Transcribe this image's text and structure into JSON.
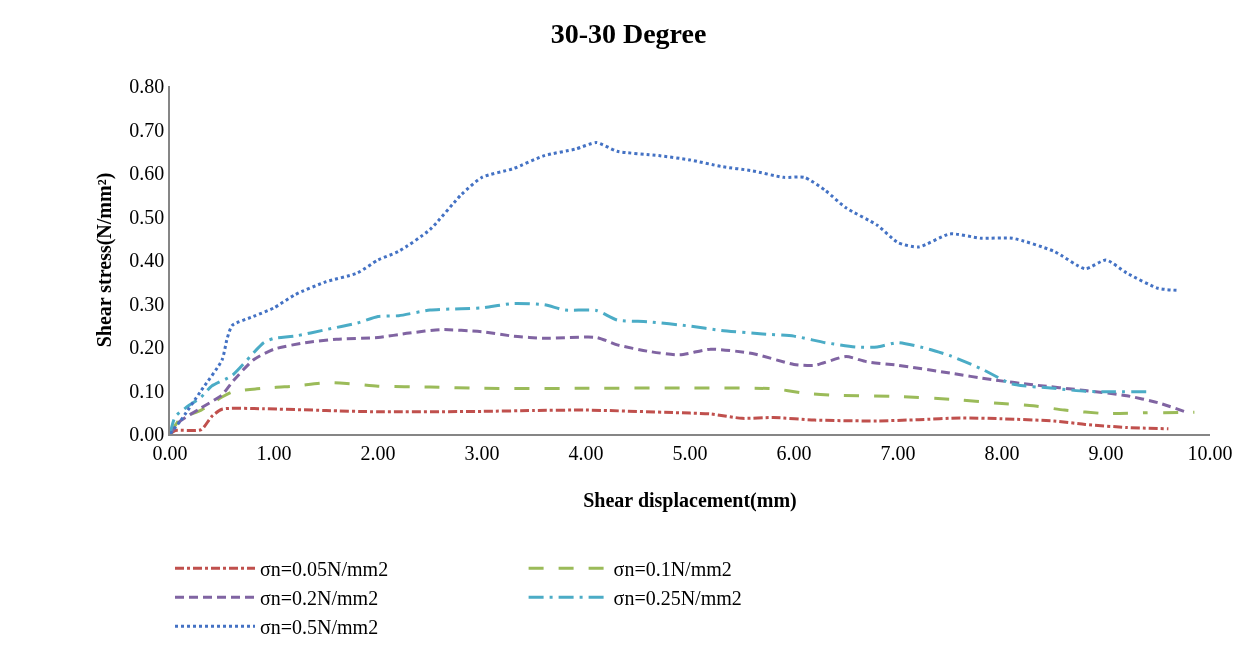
{
  "chart_data": {
    "type": "line",
    "title": "30-30 Degree",
    "xlabel": "Shear displacement(mm)",
    "ylabel": "Shear stress(N/mm²)",
    "xlim": [
      0,
      10
    ],
    "xticks": [
      {
        "value": 0,
        "label": "0.00"
      },
      {
        "value": 1,
        "label": "1.00"
      },
      {
        "value": 2,
        "label": "2.00"
      },
      {
        "value": 3,
        "label": "3.00"
      },
      {
        "value": 4,
        "label": "4.00"
      },
      {
        "value": 5,
        "label": "5.00"
      },
      {
        "value": 6,
        "label": "6.00"
      },
      {
        "value": 7,
        "label": "7.00"
      },
      {
        "value": 8,
        "label": "8.00"
      },
      {
        "value": 9,
        "label": "9.00"
      },
      {
        "value": 10,
        "label": "10.00"
      }
    ],
    "ylim": [
      0,
      0.8
    ],
    "yticks": [
      {
        "value": 0,
        "label": "0.00"
      },
      {
        "value": 0.1,
        "label": "0.10"
      },
      {
        "value": 0.2,
        "label": "0.20"
      },
      {
        "value": 0.3,
        "label": "0.30"
      },
      {
        "value": 0.4,
        "label": "0.40"
      },
      {
        "value": 0.5,
        "label": "0.50"
      },
      {
        "value": 0.6,
        "label": "0.60"
      },
      {
        "value": 0.7,
        "label": "0.70"
      },
      {
        "value": 0.8,
        "label": "0.80"
      }
    ],
    "grid": false,
    "legend": "bottom",
    "marker": "none",
    "series": [
      {
        "name": "σn=0.05N/mm2",
        "color": "#c0504d",
        "line_style": "dashdot",
        "x": [
          0,
          0.05,
          0.3,
          0.4,
          0.5,
          0.9,
          1.5,
          2.0,
          3.0,
          3.5,
          4.0,
          5.0,
          5.2,
          5.5,
          5.8,
          6.2,
          6.8,
          7.2,
          7.6,
          8.0,
          8.5,
          8.8,
          9.2,
          9.6
        ],
        "values": [
          0,
          0.008,
          0.01,
          0.04,
          0.057,
          0.058,
          0.054,
          0.051,
          0.052,
          0.054,
          0.055,
          0.048,
          0.046,
          0.036,
          0.038,
          0.032,
          0.03,
          0.033,
          0.037,
          0.035,
          0.03,
          0.022,
          0.015,
          0.012
        ]
      },
      {
        "name": "σn=0.1N/mm2",
        "color": "#9bbb59",
        "line_style": "longdash",
        "x": [
          0,
          0.1,
          0.3,
          0.5,
          0.6,
          1.0,
          1.2,
          1.5,
          1.7,
          2.0,
          2.5,
          3.0,
          4.0,
          5.0,
          5.8,
          6.1,
          6.4,
          7.0,
          7.5,
          8.0,
          8.3,
          8.6,
          9.0,
          9.4,
          9.47,
          9.55,
          9.85
        ],
        "values": [
          0,
          0.035,
          0.055,
          0.085,
          0.097,
          0.107,
          0.11,
          0.118,
          0.116,
          0.11,
          0.108,
          0.105,
          0.105,
          0.106,
          0.104,
          0.094,
          0.089,
          0.086,
          0.08,
          0.07,
          0.065,
          0.055,
          0.047,
          0.049,
          null,
          0.049,
          0.05
        ]
      },
      {
        "name": "σn=0.2N/mm2",
        "color": "#8064a2",
        "line_style": "dashed",
        "x": [
          0,
          0.1,
          0.3,
          0.5,
          0.6,
          0.8,
          1.0,
          1.3,
          1.6,
          2.0,
          2.3,
          2.6,
          3.0,
          3.3,
          3.6,
          4.1,
          4.3,
          4.6,
          4.9,
          5.2,
          5.6,
          6.0,
          6.2,
          6.5,
          6.7,
          7.0,
          7.5,
          7.9,
          8.3,
          8.8,
          9.2,
          9.5,
          9.75
        ],
        "values": [
          0,
          0.03,
          0.06,
          0.09,
          0.12,
          0.17,
          0.195,
          0.21,
          0.218,
          0.222,
          0.232,
          0.24,
          0.235,
          0.225,
          0.22,
          0.222,
          0.205,
          0.19,
          0.182,
          0.195,
          0.185,
          0.16,
          0.158,
          0.178,
          0.166,
          0.158,
          0.14,
          0.125,
          0.113,
          0.1,
          0.088,
          0.072,
          0.052
        ]
      },
      {
        "name": "σn=0.25N/mm2",
        "color": "#4bacc6",
        "line_style": "longdashdot",
        "x": [
          0,
          0.05,
          0.15,
          0.3,
          0.4,
          0.6,
          0.9,
          1.0,
          1.2,
          1.5,
          1.8,
          2.0,
          2.2,
          2.5,
          2.8,
          3.0,
          3.3,
          3.6,
          3.8,
          4.1,
          4.3,
          4.6,
          5.0,
          5.3,
          5.7,
          6.0,
          6.3,
          6.6,
          6.8,
          7.0,
          7.3,
          7.5,
          7.8,
          8.1,
          8.5,
          8.8,
          9.0,
          9.4
        ],
        "values": [
          0,
          0.04,
          0.06,
          0.085,
          0.11,
          0.135,
          0.21,
          0.22,
          0.225,
          0.24,
          0.255,
          0.27,
          0.272,
          0.285,
          0.288,
          0.29,
          0.3,
          0.297,
          0.285,
          0.284,
          0.262,
          0.258,
          0.248,
          0.238,
          0.23,
          0.225,
          0.21,
          0.2,
          0.2,
          0.21,
          0.195,
          0.18,
          0.15,
          0.115,
          0.105,
          0.098,
          0.097,
          0.097
        ]
      },
      {
        "name": "σn=0.5N/mm2",
        "color": "#4472c4",
        "line_style": "dotted",
        "x": [
          0,
          0.1,
          0.3,
          0.5,
          0.55,
          0.6,
          0.8,
          1.0,
          1.2,
          1.5,
          1.8,
          2.0,
          2.2,
          2.5,
          2.8,
          3.0,
          3.3,
          3.6,
          3.9,
          4.1,
          4.3,
          4.7,
          5.0,
          5.3,
          5.6,
          5.9,
          6.1,
          6.3,
          6.5,
          6.8,
          7.0,
          7.2,
          7.5,
          7.8,
          8.1,
          8.5,
          8.8,
          9.0,
          9.2,
          9.5,
          9.7
        ],
        "values": [
          0,
          0.03,
          0.1,
          0.17,
          0.22,
          0.25,
          0.27,
          0.29,
          0.32,
          0.35,
          0.37,
          0.4,
          0.42,
          0.47,
          0.55,
          0.59,
          0.61,
          0.64,
          0.655,
          0.67,
          0.65,
          0.64,
          0.63,
          0.615,
          0.605,
          0.59,
          0.59,
          0.56,
          0.52,
          0.48,
          0.44,
          0.43,
          0.46,
          0.45,
          0.45,
          0.42,
          0.38,
          0.4,
          0.37,
          0.335,
          0.33
        ]
      }
    ]
  }
}
